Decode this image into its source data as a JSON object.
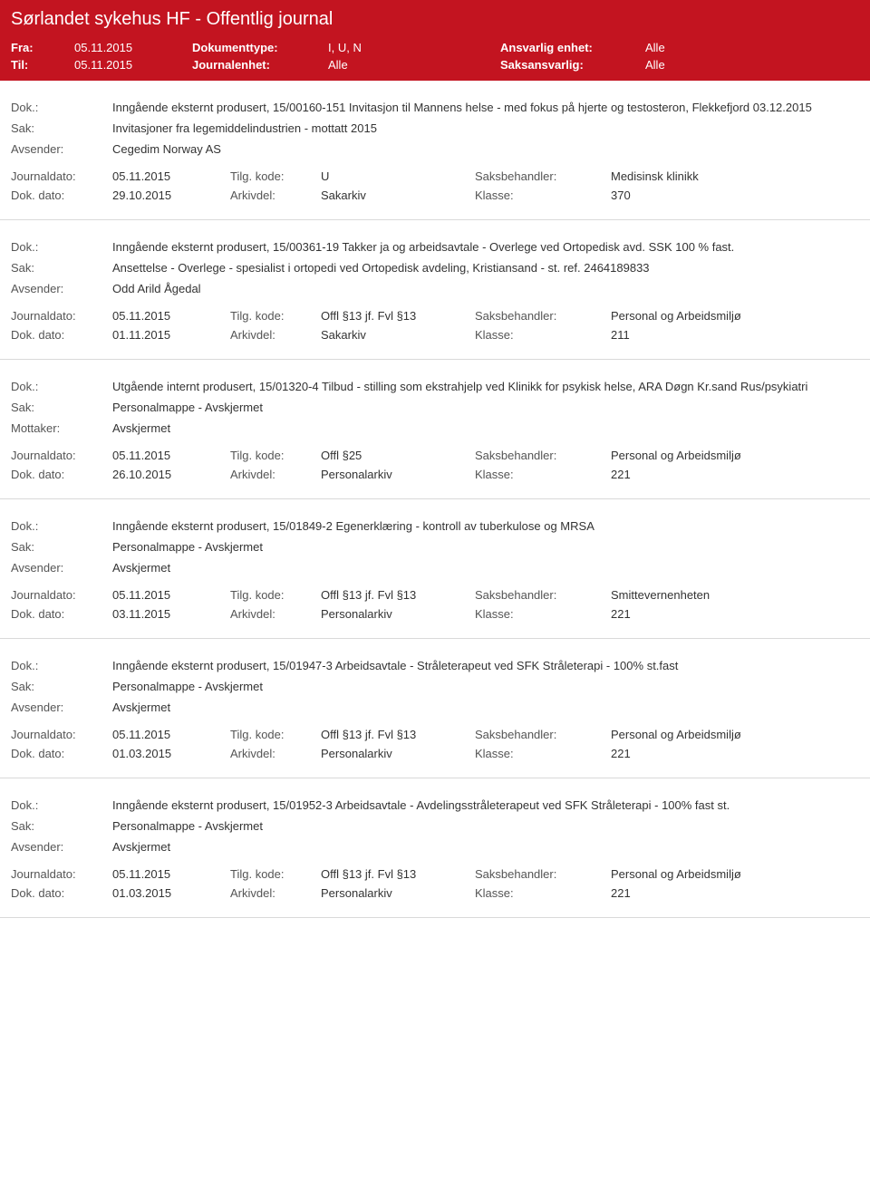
{
  "colors": {
    "header_bg": "#c31420",
    "header_fg": "#ffffff",
    "divider": "#d9d9d9",
    "label": "#555555",
    "value": "#333333"
  },
  "header": {
    "title": "Sørlandet sykehus HF - Offentlig journal",
    "fra_label": "Fra:",
    "fra_value": "05.11.2015",
    "til_label": "Til:",
    "til_value": "05.11.2015",
    "doktype_label": "Dokumenttype:",
    "doktype_value": "I, U, N",
    "journalenhet_label": "Journalenhet:",
    "journalenhet_value": "Alle",
    "ansvarlig_label": "Ansvarlig enhet:",
    "ansvarlig_value": "Alle",
    "saks_label": "Saksansvarlig:",
    "saks_value": "Alle"
  },
  "labels": {
    "dok": "Dok.:",
    "sak": "Sak:",
    "avsender": "Avsender:",
    "mottaker": "Mottaker:",
    "journaldato": "Journaldato:",
    "dokdato": "Dok. dato:",
    "tilgkode": "Tilg. kode:",
    "arkivdel": "Arkivdel:",
    "saksbehandler": "Saksbehandler:",
    "klasse": "Klasse:"
  },
  "entries": [
    {
      "dok": "Inngående eksternt produsert, 15/00160-151 Invitasjon til Mannens helse - med fokus på hjerte og testosteron, Flekkefjord 03.12.2015",
      "sak": "Invitasjoner fra legemiddelindustrien - mottatt 2015",
      "party_label": "Avsender:",
      "party": "Cegedim Norway AS",
      "journaldato": "05.11.2015",
      "tilgkode": "U",
      "saksbehandler": "Medisinsk klinikk",
      "dokdato": "29.10.2015",
      "arkivdel": "Sakarkiv",
      "klasse": "370"
    },
    {
      "dok": "Inngående eksternt produsert, 15/00361-19 Takker ja og arbeidsavtale - Overlege ved Ortopedisk avd. SSK 100 % fast.",
      "sak": "Ansettelse - Overlege - spesialist i ortopedi ved Ortopedisk avdeling, Kristiansand - st. ref. 2464189833",
      "party_label": "Avsender:",
      "party": "Odd Arild Ågedal",
      "journaldato": "05.11.2015",
      "tilgkode": "Offl §13 jf. Fvl §13",
      "saksbehandler": "Personal og Arbeidsmiljø",
      "dokdato": "01.11.2015",
      "arkivdel": "Sakarkiv",
      "klasse": "211"
    },
    {
      "dok": "Utgående internt produsert, 15/01320-4 Tilbud - stilling som ekstrahjelp ved Klinikk for psykisk helse, ARA Døgn Kr.sand Rus/psykiatri",
      "sak": "Personalmappe - Avskjermet",
      "party_label": "Mottaker:",
      "party": "Avskjermet",
      "journaldato": "05.11.2015",
      "tilgkode": "Offl §25",
      "saksbehandler": "Personal og Arbeidsmiljø",
      "dokdato": "26.10.2015",
      "arkivdel": "Personalarkiv",
      "klasse": "221"
    },
    {
      "dok": "Inngående eksternt produsert, 15/01849-2 Egenerklæring - kontroll av tuberkulose og MRSA",
      "sak": "Personalmappe - Avskjermet",
      "party_label": "Avsender:",
      "party": "Avskjermet",
      "journaldato": "05.11.2015",
      "tilgkode": "Offl §13 jf. Fvl §13",
      "saksbehandler": "Smittevernenheten",
      "dokdato": "03.11.2015",
      "arkivdel": "Personalarkiv",
      "klasse": "221"
    },
    {
      "dok": "Inngående eksternt produsert, 15/01947-3 Arbeidsavtale - Stråleterapeut ved SFK Stråleterapi - 100% st.fast",
      "sak": "Personalmappe - Avskjermet",
      "party_label": "Avsender:",
      "party": "Avskjermet",
      "journaldato": "05.11.2015",
      "tilgkode": "Offl §13 jf. Fvl §13",
      "saksbehandler": "Personal og Arbeidsmiljø",
      "dokdato": "01.03.2015",
      "arkivdel": "Personalarkiv",
      "klasse": "221"
    },
    {
      "dok": "Inngående eksternt produsert, 15/01952-3 Arbeidsavtale - Avdelingsstråleterapeut ved SFK Stråleterapi - 100% fast st.",
      "sak": "Personalmappe - Avskjermet",
      "party_label": "Avsender:",
      "party": "Avskjermet",
      "journaldato": "05.11.2015",
      "tilgkode": "Offl §13 jf. Fvl §13",
      "saksbehandler": "Personal og Arbeidsmiljø",
      "dokdato": "01.03.2015",
      "arkivdel": "Personalarkiv",
      "klasse": "221"
    }
  ]
}
